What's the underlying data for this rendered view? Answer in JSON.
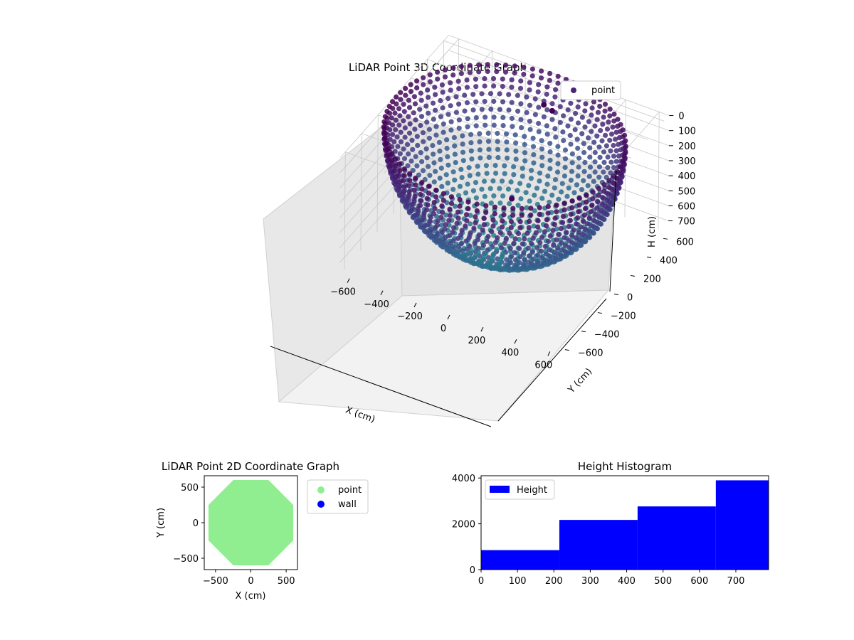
{
  "figure": {
    "background": "#ffffff"
  },
  "chart_data": [
    {
      "type": "scatter3d",
      "title": "LiDAR Point 3D Coordinate Graph",
      "xlabel": "X (cm)",
      "ylabel": "Y (cm)",
      "zlabel": "H (cm)",
      "xlim": [
        -660,
        660
      ],
      "ylim": [
        -660,
        660
      ],
      "zlim": [
        0,
        780
      ],
      "z_inverted": true,
      "xticks": [
        -600,
        -400,
        -200,
        0,
        200,
        400,
        600
      ],
      "yticks": [
        -600,
        -400,
        -200,
        0,
        200,
        400,
        600
      ],
      "zticks": [
        0,
        100,
        200,
        300,
        400,
        500,
        600,
        700
      ],
      "grid": true,
      "legend": {
        "placement": "top-right",
        "entries": [
          "point"
        ]
      },
      "surface": {
        "shape": "hemispherical bowl",
        "radius": 650,
        "depth": 750,
        "colormap": [
          "#440154",
          "#482677",
          "#3e4a89",
          "#31688e",
          "#26828e"
        ]
      },
      "series": [
        {
          "name": "point",
          "color": "#482677",
          "highlighted_points": [
            {
              "x": -40,
              "y": 560,
              "h": 150
            },
            {
              "x": 10,
              "y": 560,
              "h": 170
            },
            {
              "x": 30,
              "y": 30,
              "h": 420
            }
          ]
        }
      ]
    },
    {
      "type": "scatter",
      "title": "LiDAR Point 2D Coordinate Graph",
      "xlabel": "X (cm)",
      "ylabel": "Y (cm)",
      "xlim": [
        -660,
        660
      ],
      "ylim": [
        -660,
        660
      ],
      "xticks": [
        -500,
        0,
        500
      ],
      "yticks": [
        -500,
        0,
        500
      ],
      "legend": {
        "placement": "outside-right",
        "entries": [
          "point",
          "wall"
        ]
      },
      "series": [
        {
          "name": "point",
          "color": "#90ee90",
          "shape": "disc",
          "radius": 650
        },
        {
          "name": "wall",
          "color": "#0000ff",
          "points": []
        }
      ]
    },
    {
      "type": "histogram",
      "title": "Height Histogram",
      "xlim": [
        0,
        790
      ],
      "ylim": [
        0,
        4100
      ],
      "xticks": [
        0,
        100,
        200,
        300,
        400,
        500,
        600,
        700
      ],
      "yticks": [
        0,
        2000,
        4000
      ],
      "legend": {
        "placement": "top-left",
        "entries": [
          "Height"
        ]
      },
      "series": [
        {
          "name": "Height",
          "color": "#0000ff",
          "bins": [
            {
              "x0": 0,
              "x1": 215,
              "count": 850
            },
            {
              "x0": 215,
              "x1": 430,
              "count": 2170
            },
            {
              "x0": 430,
              "x1": 645,
              "count": 2760
            },
            {
              "x0": 645,
              "x1": 790,
              "count": 3900
            }
          ]
        }
      ]
    }
  ]
}
